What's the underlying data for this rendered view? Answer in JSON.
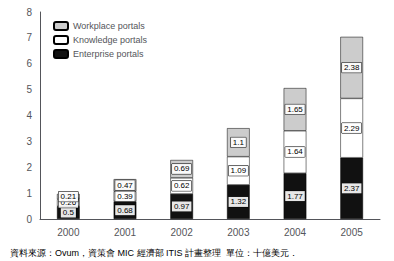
{
  "chart_data": {
    "type": "bar",
    "stacked": true,
    "categories": [
      "2000",
      "2001",
      "2002",
      "2003",
      "2004",
      "2005"
    ],
    "series": [
      {
        "name": "Enterprise portals",
        "color": "#111111",
        "values": [
          0.5,
          0.68,
          0.97,
          1.32,
          1.77,
          2.37
        ]
      },
      {
        "name": "Knowledge portals",
        "color": "#ffffff",
        "values": [
          0.26,
          0.39,
          0.62,
          1.09,
          1.64,
          2.29
        ]
      },
      {
        "name": "Workplace portals",
        "color": "#cccccc",
        "values": [
          0.21,
          0.47,
          0.69,
          1.1,
          1.65,
          2.38
        ]
      }
    ],
    "ylim": [
      0,
      8
    ],
    "yticks": [
      0,
      1,
      2,
      3,
      4,
      5,
      6,
      7,
      8
    ],
    "grid": false,
    "legend": "upper left",
    "data_labels": true,
    "annotations": [
      "資料來源：Ovum，資策會 MIC 經濟部 ITIS 計畫整理  單位：十億美元．"
    ]
  }
}
